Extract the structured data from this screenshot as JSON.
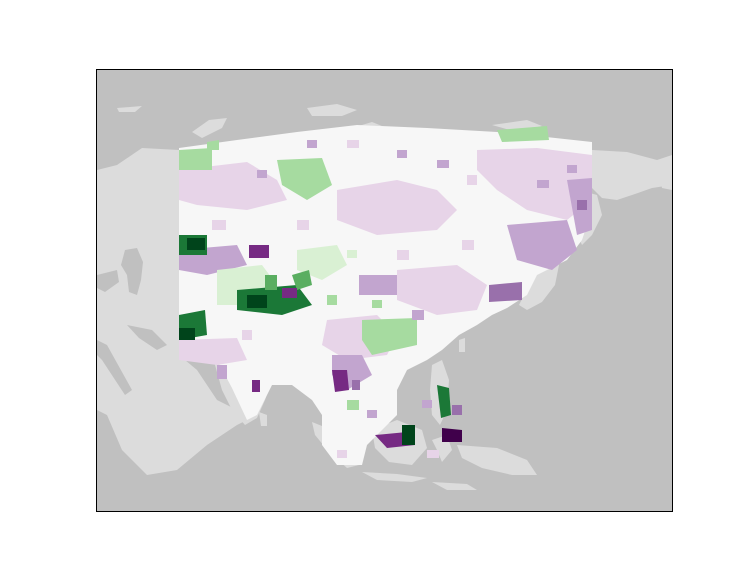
{
  "map": {
    "region": "Asia",
    "basemap": {
      "ocean_color": "#c0c0c0",
      "land_color": "#dcdcdc"
    },
    "colormap": {
      "name": "PRGn",
      "colors": [
        "#40004b",
        "#762a83",
        "#9970ab",
        "#c2a5cf",
        "#e7d4e8",
        "#f7f7f7",
        "#d9f0d3",
        "#a6dba0",
        "#5aae61",
        "#1b7837",
        "#00441b"
      ]
    },
    "axes_frame": true,
    "legend": null
  }
}
